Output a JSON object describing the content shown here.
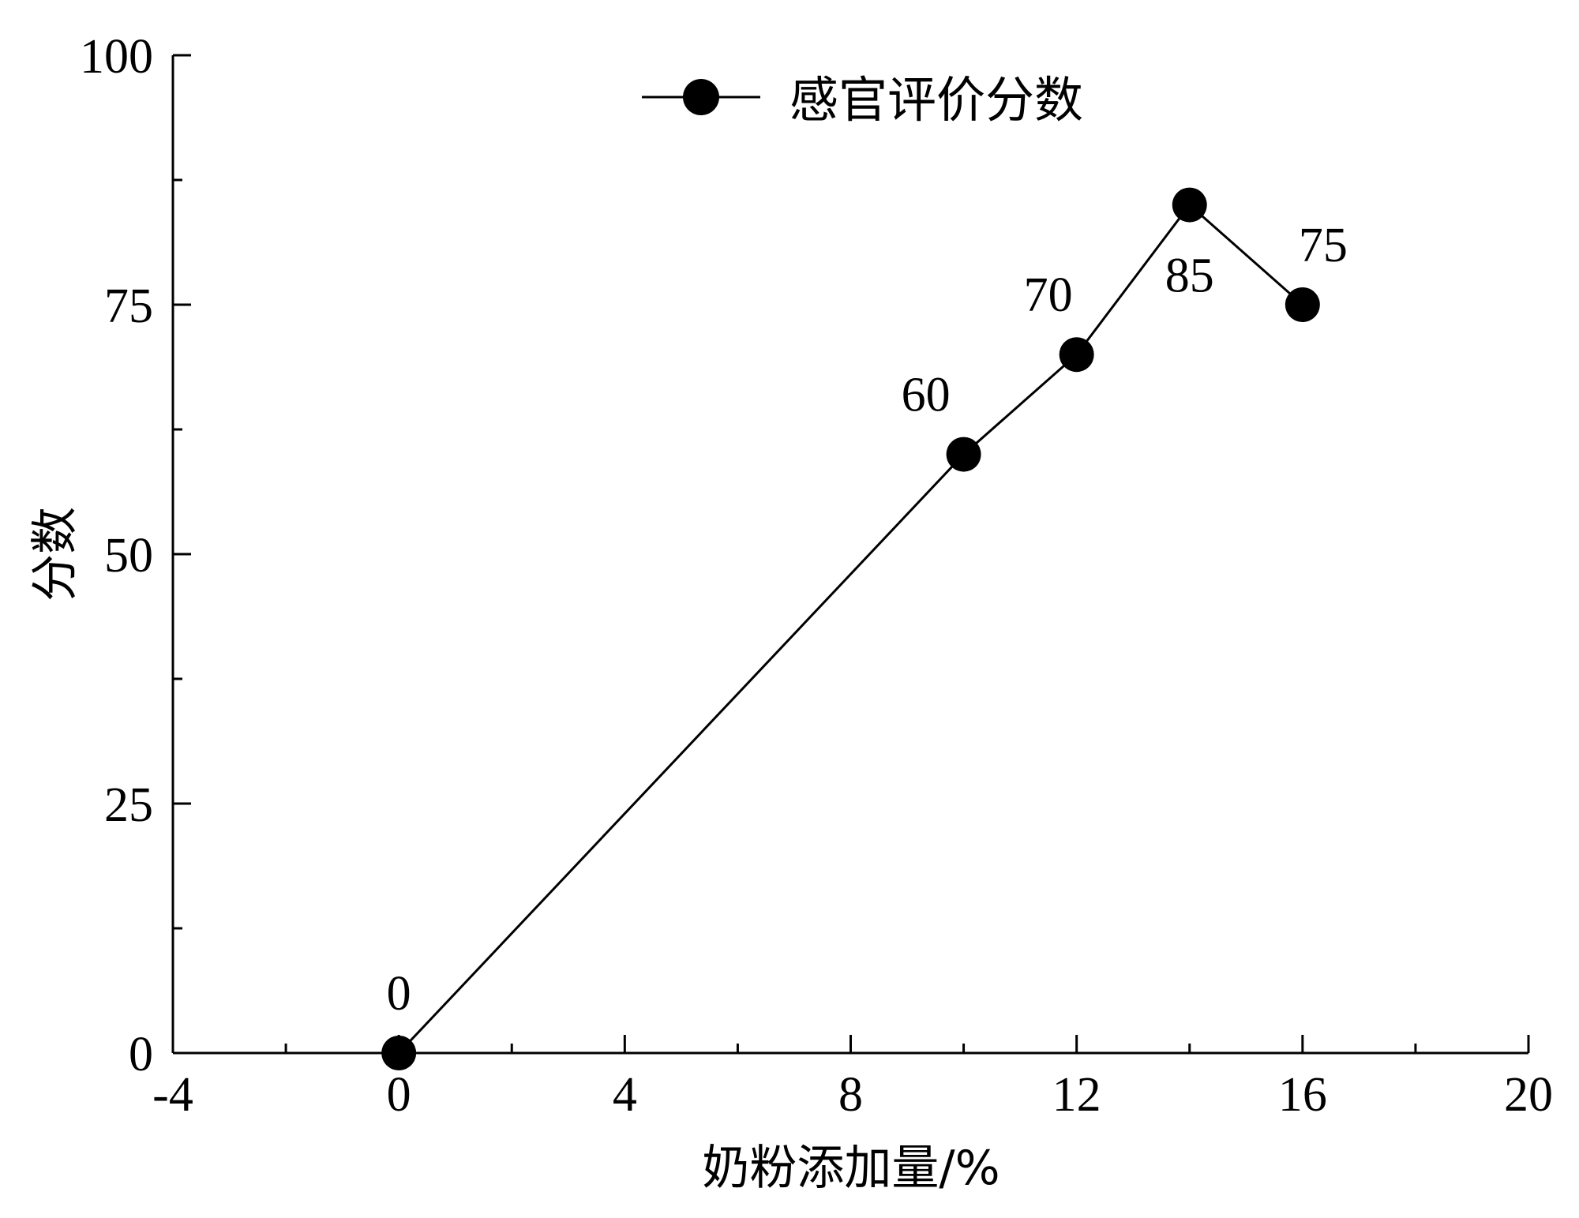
{
  "chart_data": {
    "type": "line",
    "xlabel": "奶粉添加量/%",
    "ylabel": "分数",
    "xlim": [
      -4,
      20
    ],
    "ylim": [
      0,
      100
    ],
    "x_ticks": [
      -4,
      0,
      4,
      8,
      12,
      16,
      20
    ],
    "x_minor_ticks": [
      -2,
      2,
      6,
      10,
      14,
      18
    ],
    "y_ticks": [
      0,
      25,
      50,
      75,
      100
    ],
    "y_minor_ticks": [
      12.5,
      37.5,
      62.5,
      87.5
    ],
    "grid": false,
    "legend_position": "top-center",
    "series": [
      {
        "name": "感官评价分数",
        "color": "#000000",
        "marker": "circle",
        "x": [
          0,
          10,
          12,
          14,
          16
        ],
        "y": [
          0,
          60,
          70,
          85,
          75
        ],
        "labels": [
          "0",
          "60",
          "70",
          "85",
          "75"
        ]
      }
    ]
  }
}
